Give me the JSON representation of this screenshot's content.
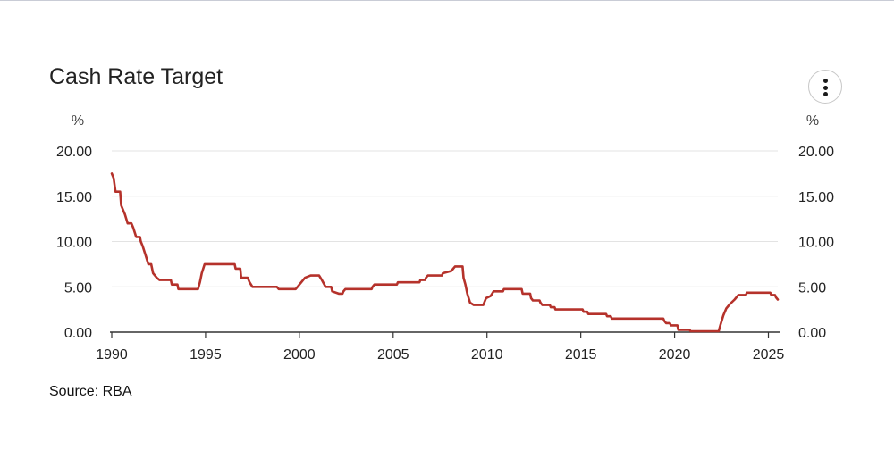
{
  "header": {
    "title": "Cash Rate Target",
    "menu_icon": "more-vert-icon"
  },
  "source_text": "Source: RBA",
  "colors": {
    "line": "#b5322b",
    "grid": "#e3e3e3",
    "axis": "#333333",
    "text": "#222222"
  },
  "chart_data": {
    "type": "line",
    "title": "Cash Rate Target",
    "y_unit_left": "%",
    "y_unit_right": "%",
    "xlim": [
      1990,
      2025.5
    ],
    "ylim": [
      0,
      20
    ],
    "x_ticks": [
      1990,
      1995,
      2000,
      2005,
      2010,
      2015,
      2020,
      2025
    ],
    "x_tick_labels": [
      "1990",
      "1995",
      "2000",
      "2005",
      "2010",
      "2015",
      "2020",
      "2025"
    ],
    "y_ticks": [
      0,
      5,
      10,
      15,
      20
    ],
    "y_tick_labels": [
      "0.00",
      "5.00",
      "10.00",
      "15.00",
      "20.00"
    ],
    "grid": "horizontal",
    "series": [
      {
        "points": [
          [
            1990.0,
            17.5
          ],
          [
            1990.1,
            17.0
          ],
          [
            1990.2,
            15.5
          ],
          [
            1990.45,
            15.5
          ],
          [
            1990.5,
            14.0
          ],
          [
            1990.6,
            13.5
          ],
          [
            1990.7,
            13.0
          ],
          [
            1990.85,
            12.0
          ],
          [
            1991.05,
            12.0
          ],
          [
            1991.15,
            11.5
          ],
          [
            1991.3,
            10.5
          ],
          [
            1991.5,
            10.5
          ],
          [
            1991.55,
            10.0
          ],
          [
            1991.65,
            9.5
          ],
          [
            1991.8,
            8.5
          ],
          [
            1991.95,
            7.5
          ],
          [
            1992.1,
            7.5
          ],
          [
            1992.2,
            6.5
          ],
          [
            1992.4,
            6.0
          ],
          [
            1992.55,
            5.75
          ],
          [
            1993.15,
            5.75
          ],
          [
            1993.2,
            5.25
          ],
          [
            1993.5,
            5.25
          ],
          [
            1993.55,
            4.75
          ],
          [
            1994.6,
            4.75
          ],
          [
            1994.7,
            5.5
          ],
          [
            1994.8,
            6.5
          ],
          [
            1994.95,
            7.5
          ],
          [
            1996.55,
            7.5
          ],
          [
            1996.6,
            7.0
          ],
          [
            1996.85,
            7.0
          ],
          [
            1996.9,
            6.0
          ],
          [
            1997.25,
            6.0
          ],
          [
            1997.35,
            5.5
          ],
          [
            1997.5,
            5.0
          ],
          [
            1998.8,
            5.0
          ],
          [
            1998.9,
            4.75
          ],
          [
            1999.8,
            4.75
          ],
          [
            1999.9,
            5.0
          ],
          [
            2000.1,
            5.5
          ],
          [
            2000.3,
            6.0
          ],
          [
            2000.6,
            6.25
          ],
          [
            2001.05,
            6.25
          ],
          [
            2001.2,
            5.75
          ],
          [
            2001.4,
            5.0
          ],
          [
            2001.7,
            5.0
          ],
          [
            2001.75,
            4.5
          ],
          [
            2002.1,
            4.25
          ],
          [
            2002.3,
            4.25
          ],
          [
            2002.35,
            4.5
          ],
          [
            2002.45,
            4.75
          ],
          [
            2003.85,
            4.75
          ],
          [
            2003.9,
            5.0
          ],
          [
            2004.0,
            5.25
          ],
          [
            2005.2,
            5.25
          ],
          [
            2005.25,
            5.5
          ],
          [
            2006.4,
            5.5
          ],
          [
            2006.45,
            5.75
          ],
          [
            2006.7,
            5.75
          ],
          [
            2006.75,
            6.0
          ],
          [
            2006.85,
            6.25
          ],
          [
            2007.6,
            6.25
          ],
          [
            2007.65,
            6.5
          ],
          [
            2008.1,
            6.75
          ],
          [
            2008.2,
            7.0
          ],
          [
            2008.3,
            7.25
          ],
          [
            2008.7,
            7.25
          ],
          [
            2008.75,
            6.0
          ],
          [
            2008.85,
            5.25
          ],
          [
            2008.95,
            4.25
          ],
          [
            2009.1,
            3.25
          ],
          [
            2009.3,
            3.0
          ],
          [
            2009.8,
            3.0
          ],
          [
            2009.85,
            3.25
          ],
          [
            2009.95,
            3.75
          ],
          [
            2010.2,
            4.0
          ],
          [
            2010.35,
            4.5
          ],
          [
            2010.85,
            4.5
          ],
          [
            2010.9,
            4.75
          ],
          [
            2011.85,
            4.75
          ],
          [
            2011.9,
            4.25
          ],
          [
            2012.3,
            4.25
          ],
          [
            2012.35,
            3.75
          ],
          [
            2012.45,
            3.5
          ],
          [
            2012.8,
            3.5
          ],
          [
            2012.85,
            3.25
          ],
          [
            2012.95,
            3.0
          ],
          [
            2013.35,
            3.0
          ],
          [
            2013.4,
            2.75
          ],
          [
            2013.6,
            2.75
          ],
          [
            2013.65,
            2.5
          ],
          [
            2015.1,
            2.5
          ],
          [
            2015.15,
            2.25
          ],
          [
            2015.35,
            2.25
          ],
          [
            2015.4,
            2.0
          ],
          [
            2016.35,
            2.0
          ],
          [
            2016.4,
            1.75
          ],
          [
            2016.6,
            1.75
          ],
          [
            2016.65,
            1.5
          ],
          [
            2019.4,
            1.5
          ],
          [
            2019.45,
            1.25
          ],
          [
            2019.55,
            1.0
          ],
          [
            2019.75,
            1.0
          ],
          [
            2019.8,
            0.75
          ],
          [
            2020.15,
            0.75
          ],
          [
            2020.2,
            0.25
          ],
          [
            2020.8,
            0.25
          ],
          [
            2020.85,
            0.1
          ],
          [
            2022.35,
            0.1
          ],
          [
            2022.45,
            0.85
          ],
          [
            2022.6,
            1.85
          ],
          [
            2022.75,
            2.6
          ],
          [
            2022.95,
            3.1
          ],
          [
            2023.2,
            3.6
          ],
          [
            2023.4,
            4.1
          ],
          [
            2023.8,
            4.1
          ],
          [
            2023.85,
            4.35
          ],
          [
            2025.1,
            4.35
          ],
          [
            2025.15,
            4.1
          ],
          [
            2025.35,
            4.1
          ],
          [
            2025.4,
            3.85
          ],
          [
            2025.5,
            3.6
          ]
        ]
      }
    ]
  }
}
